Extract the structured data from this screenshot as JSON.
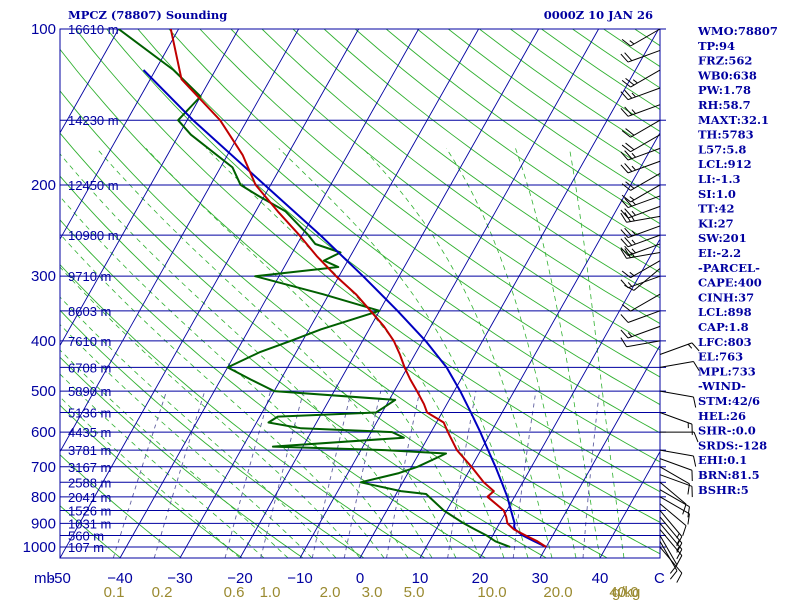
{
  "chart_data": {
    "type": "skew-t sounding",
    "title": "MPCZ (78807) Sounding",
    "valid_time": "0000Z 10 JAN 26",
    "y_axis_unit": "mb",
    "x_axis_unit": "C",
    "mixing_ratio_unit": "g/kg",
    "pressure_levels": [
      100,
      200,
      300,
      400,
      500,
      600,
      700,
      800,
      900,
      1000
    ],
    "minor_pressure_levels": [
      150,
      250,
      350,
      450,
      550,
      650,
      750,
      850,
      950
    ],
    "temperature_ticks": [
      -50,
      -40,
      -30,
      -20,
      -10,
      0,
      10,
      20,
      30,
      40
    ],
    "temperature_tick_labels": [
      "-50",
      "−40",
      "−30",
      "−20",
      "−10",
      "0",
      "10",
      "20",
      "30",
      "40"
    ],
    "mixing_ratio_labels": [
      {
        "p": 1000,
        "t": -50,
        "text": "0.1"
      },
      {
        "p": 1000,
        "t": -42,
        "text": "0.2"
      },
      {
        "p": 1000,
        "t": -30,
        "text": "0.6"
      },
      {
        "p": 1000,
        "t": -24,
        "text": "1.0"
      },
      {
        "p": 1000,
        "t": -14,
        "text": "2.0"
      },
      {
        "p": 1000,
        "t": -7,
        "text": "3.0"
      },
      {
        "p": 1000,
        "t": 0,
        "text": "5.0"
      },
      {
        "p": 1000,
        "t": 13,
        "text": "10.0"
      },
      {
        "p": 1000,
        "t": 24,
        "text": "20.0"
      },
      {
        "p": 1000,
        "t": 35,
        "text": "40.0"
      }
    ],
    "height_labels": [
      {
        "p": 100,
        "text": "16610 m"
      },
      {
        "p": 150,
        "text": "14230 m"
      },
      {
        "p": 200,
        "text": "12450 m"
      },
      {
        "p": 250,
        "text": "10980 m"
      },
      {
        "p": 300,
        "text": "9710 m"
      },
      {
        "p": 350,
        "text": "8603 m"
      },
      {
        "p": 400,
        "text": "7610 m"
      },
      {
        "p": 450,
        "text": "6708 m"
      },
      {
        "p": 500,
        "text": "5890 m"
      },
      {
        "p": 550,
        "text": "5136 m"
      },
      {
        "p": 600,
        "text": "4435 m"
      },
      {
        "p": 650,
        "text": "3781 m"
      },
      {
        "p": 700,
        "text": "3167 m"
      },
      {
        "p": 750,
        "text": "2588 m"
      },
      {
        "p": 800,
        "text": "2041 m"
      },
      {
        "p": 850,
        "text": "1526 m"
      },
      {
        "p": 900,
        "text": "1031 m"
      },
      {
        "p": 950,
        "text": "560 m"
      },
      {
        "p": 1000,
        "text": "107 m"
      }
    ],
    "temperature_profile": [
      [
        1000,
        30.0
      ],
      [
        975,
        28.0
      ],
      [
        950,
        25.5
      ],
      [
        925,
        23.0
      ],
      [
        900,
        21.3
      ],
      [
        875,
        20.5
      ],
      [
        850,
        19.5
      ],
      [
        800,
        15.5
      ],
      [
        780,
        16.0
      ],
      [
        750,
        13.5
      ],
      [
        700,
        10.0
      ],
      [
        650,
        6.0
      ],
      [
        600,
        2.8
      ],
      [
        575,
        1.2
      ],
      [
        550,
        -2.5
      ],
      [
        530,
        -3.8
      ],
      [
        500,
        -6.2
      ],
      [
        475,
        -8.4
      ],
      [
        450,
        -10.5
      ],
      [
        425,
        -12.5
      ],
      [
        400,
        -14.8
      ],
      [
        375,
        -17.8
      ],
      [
        350,
        -21.5
      ],
      [
        325,
        -25.5
      ],
      [
        300,
        -30.5
      ],
      [
        275,
        -35.5
      ],
      [
        250,
        -40.5
      ],
      [
        225,
        -46.3
      ],
      [
        200,
        -52.5
      ],
      [
        175,
        -57.5
      ],
      [
        150,
        -64.5
      ],
      [
        125,
        -74.8
      ],
      [
        100,
        -81.3
      ]
    ],
    "dewpoint_profile": [
      [
        1000,
        24.0
      ],
      [
        975,
        21.0
      ],
      [
        950,
        19.0
      ],
      [
        925,
        16.5
      ],
      [
        900,
        14.0
      ],
      [
        850,
        9.5
      ],
      [
        790,
        5.0
      ],
      [
        780,
        0.5
      ],
      [
        750,
        -7.0
      ],
      [
        720,
        -1.5
      ],
      [
        700,
        1.0
      ],
      [
        660,
        4.5
      ],
      [
        650,
        -6.0
      ],
      [
        640,
        -25.0
      ],
      [
        615,
        -4.0
      ],
      [
        600,
        -6.5
      ],
      [
        590,
        -22.0
      ],
      [
        575,
        -28.0
      ],
      [
        560,
        -27.0
      ],
      [
        550,
        -11.0
      ],
      [
        520,
        -9.0
      ],
      [
        500,
        -30.0
      ],
      [
        475,
        -35.0
      ],
      [
        450,
        -40.0
      ],
      [
        420,
        -36.0
      ],
      [
        400,
        -32.0
      ],
      [
        380,
        -28.0
      ],
      [
        350,
        -20.0
      ],
      [
        325,
        -31.0
      ],
      [
        300,
        -44.0
      ],
      [
        288,
        -31.0
      ],
      [
        280,
        -34.0
      ],
      [
        270,
        -32.0
      ],
      [
        260,
        -37.0
      ],
      [
        250,
        -39.0
      ],
      [
        225,
        -45.0
      ],
      [
        210,
        -51.0
      ],
      [
        200,
        -55.0
      ],
      [
        185,
        -58.0
      ],
      [
        160,
        -68.0
      ],
      [
        150,
        -71.5
      ],
      [
        135,
        -70.0
      ],
      [
        120,
        -77.0
      ],
      [
        100,
        -90.0
      ]
    ],
    "parcel_profile": [
      [
        1000,
        30.0
      ],
      [
        975,
        27.5
      ],
      [
        950,
        25.0
      ],
      [
        925,
        23.2
      ],
      [
        912,
        22.7
      ],
      [
        900,
        22.5
      ],
      [
        850,
        20.7
      ],
      [
        800,
        18.8
      ],
      [
        750,
        16.5
      ],
      [
        700,
        14.0
      ],
      [
        650,
        11.2
      ],
      [
        600,
        8.2
      ],
      [
        550,
        4.8
      ],
      [
        500,
        1.0
      ],
      [
        450,
        -3.5
      ],
      [
        400,
        -9.5
      ],
      [
        350,
        -17.0
      ],
      [
        300,
        -26.0
      ],
      [
        250,
        -37.0
      ],
      [
        200,
        -51.0
      ],
      [
        150,
        -69.0
      ],
      [
        120,
        -82.0
      ]
    ],
    "wind_profile": [
      [
        1000,
        140,
        10
      ],
      [
        975,
        150,
        10
      ],
      [
        950,
        150,
        10
      ],
      [
        925,
        140,
        10
      ],
      [
        900,
        140,
        15
      ],
      [
        875,
        140,
        15
      ],
      [
        850,
        140,
        15
      ],
      [
        825,
        130,
        10
      ],
      [
        800,
        120,
        10
      ],
      [
        775,
        120,
        10
      ],
      [
        750,
        130,
        10
      ],
      [
        725,
        110,
        10
      ],
      [
        700,
        120,
        10
      ],
      [
        675,
        110,
        10
      ],
      [
        650,
        100,
        10
      ],
      [
        600,
        90,
        10
      ],
      [
        550,
        110,
        15
      ],
      [
        500,
        100,
        10
      ],
      [
        450,
        80,
        10
      ],
      [
        425,
        70,
        15
      ],
      [
        400,
        260,
        10
      ],
      [
        375,
        250,
        15
      ],
      [
        350,
        250,
        10
      ],
      [
        325,
        240,
        10
      ],
      [
        300,
        250,
        15
      ],
      [
        290,
        230,
        10
      ],
      [
        280,
        240,
        15
      ],
      [
        270,
        260,
        25
      ],
      [
        260,
        250,
        25
      ],
      [
        250,
        250,
        25
      ],
      [
        240,
        250,
        25
      ],
      [
        230,
        260,
        25
      ],
      [
        220,
        250,
        25
      ],
      [
        210,
        250,
        25
      ],
      [
        200,
        240,
        15
      ],
      [
        190,
        240,
        20
      ],
      [
        180,
        250,
        25
      ],
      [
        170,
        250,
        25
      ],
      [
        160,
        240,
        20
      ],
      [
        150,
        240,
        20
      ],
      [
        140,
        250,
        25
      ],
      [
        130,
        250,
        25
      ],
      [
        120,
        240,
        25
      ],
      [
        110,
        250,
        20
      ],
      [
        100,
        240,
        15
      ]
    ]
  },
  "indices": [
    "WMO:78807",
    "TP:94",
    "FRZ:562",
    "WB0:638",
    "PW:1.78",
    "RH:58.7",
    "MAXT:32.1",
    "TH:5783",
    "L57:5.8",
    "LCL:912",
    "LI:-1.3",
    "SI:1.0",
    "TT:42",
    "KI:27",
    "SW:201",
    "EI:-2.2",
    "-PARCEL-",
    "CAPE:400",
    "CINH:37",
    "LCL:898",
    "CAP:1.8",
    "LFC:803",
    "EL:763",
    "MPL:733",
    "-WIND-",
    "STM:42/6",
    "HEL:26",
    "SHR-:0.0",
    "SRDS:-128",
    "EHI:0.1",
    "BRN:81.5",
    "BSHR:5"
  ],
  "colors": {
    "axis": "#0000a0",
    "isobar": "#0000a0",
    "isotherm": "#0000a0",
    "dry_adiabat": "#30b030",
    "moist_adiabat": "#30b030",
    "mixing_ratio": "#6060a0",
    "temperature": "#c00000",
    "dewpoint": "#006000",
    "parcel": "#0000c0",
    "text": "#0000a0",
    "mixing_ratio_label": "#9a8a30",
    "barb": "#000000"
  }
}
